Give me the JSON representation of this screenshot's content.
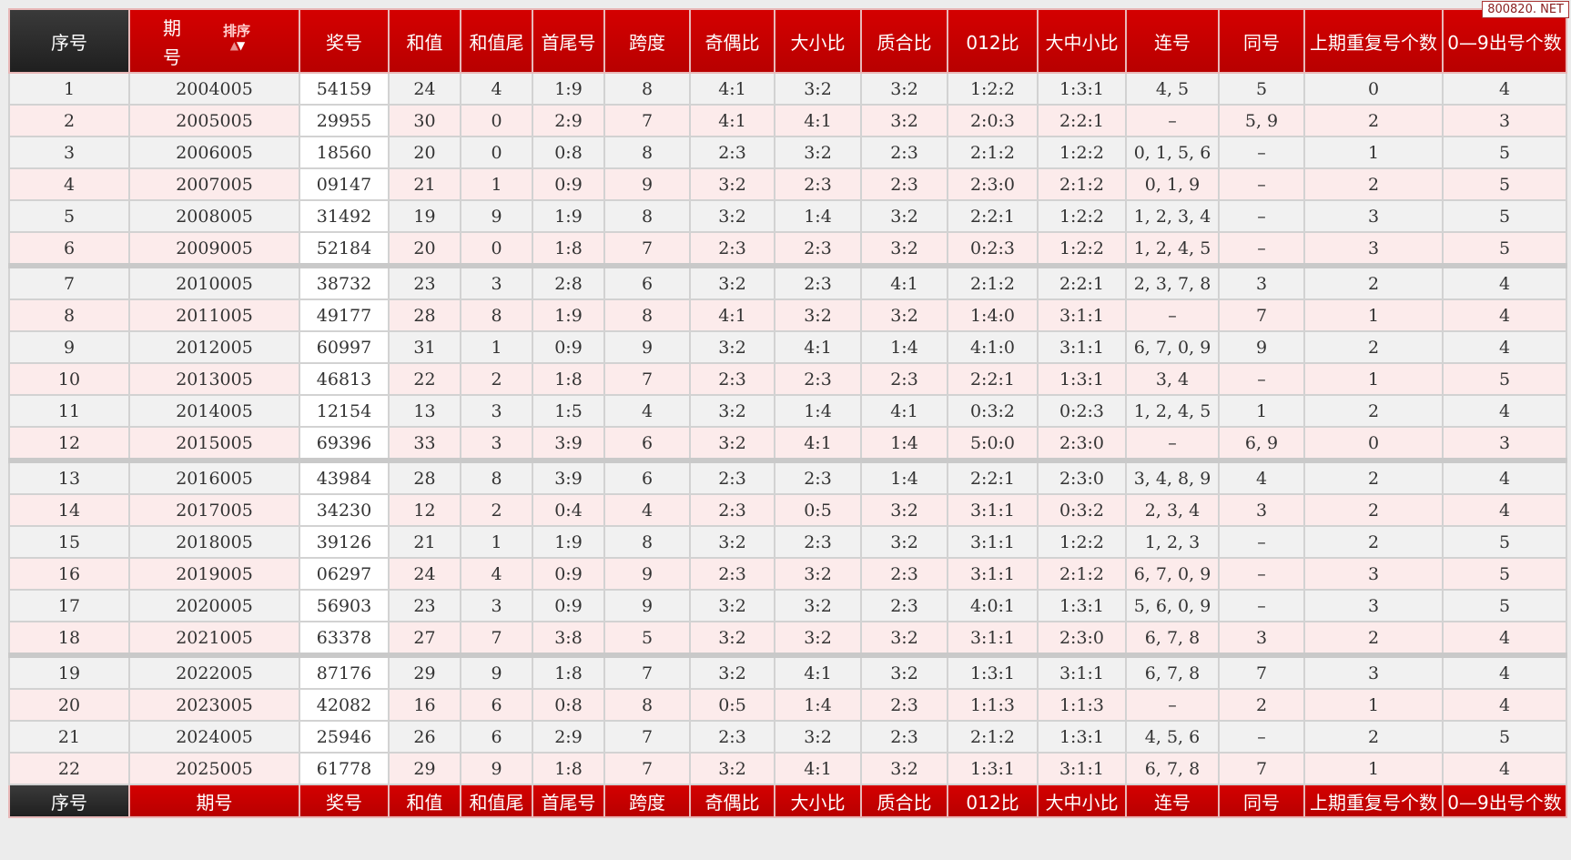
{
  "watermark": "800820. NET",
  "header": {
    "columns": [
      "序号",
      "期号",
      "奖号",
      "和值",
      "和值尾",
      "首尾号",
      "跨度",
      "奇偶比",
      "大小比",
      "质合比",
      "012比",
      "大中小比",
      "连号",
      "同号",
      "上期重复号个数",
      "0—9出号个数"
    ],
    "period_line1": "期",
    "period_line2": "号",
    "sort_label": "排序",
    "sort_icons": [
      "arrow-up-icon",
      "arrow-down-icon"
    ]
  },
  "footer": {
    "columns": [
      "序号",
      "期号",
      "奖号",
      "和值",
      "和值尾",
      "首尾号",
      "跨度",
      "奇偶比",
      "大小比",
      "质合比",
      "012比",
      "大中小比",
      "连号",
      "同号",
      "上期重复号个数",
      "0—9出号个数"
    ]
  },
  "colors": {
    "header_red": "#c80000",
    "header_dark": "#2b2b2b",
    "row_gray": "#f1f1f1",
    "row_pink": "#fcebeb"
  },
  "rows": [
    [
      "1",
      "2004005",
      "54159",
      "24",
      "4",
      "1:9",
      "8",
      "4:1",
      "3:2",
      "3:2",
      "1:2:2",
      "1:3:1",
      "4, 5",
      "5",
      "0",
      "4"
    ],
    [
      "2",
      "2005005",
      "29955",
      "30",
      "0",
      "2:9",
      "7",
      "4:1",
      "4:1",
      "3:2",
      "2:0:3",
      "2:2:1",
      "–",
      "5, 9",
      "2",
      "3"
    ],
    [
      "3",
      "2006005",
      "18560",
      "20",
      "0",
      "0:8",
      "8",
      "2:3",
      "3:2",
      "2:3",
      "2:1:2",
      "1:2:2",
      "0, 1, 5, 6",
      "–",
      "1",
      "5"
    ],
    [
      "4",
      "2007005",
      "09147",
      "21",
      "1",
      "0:9",
      "9",
      "3:2",
      "2:3",
      "2:3",
      "2:3:0",
      "2:1:2",
      "0, 1, 9",
      "–",
      "2",
      "5"
    ],
    [
      "5",
      "2008005",
      "31492",
      "19",
      "9",
      "1:9",
      "8",
      "3:2",
      "1:4",
      "3:2",
      "2:2:1",
      "1:2:2",
      "1, 2, 3, 4",
      "–",
      "3",
      "5"
    ],
    [
      "6",
      "2009005",
      "52184",
      "20",
      "0",
      "1:8",
      "7",
      "2:3",
      "2:3",
      "3:2",
      "0:2:3",
      "1:2:2",
      "1, 2, 4, 5",
      "–",
      "3",
      "5"
    ],
    [
      "7",
      "2010005",
      "38732",
      "23",
      "3",
      "2:8",
      "6",
      "3:2",
      "2:3",
      "4:1",
      "2:1:2",
      "2:2:1",
      "2, 3, 7, 8",
      "3",
      "2",
      "4"
    ],
    [
      "8",
      "2011005",
      "49177",
      "28",
      "8",
      "1:9",
      "8",
      "4:1",
      "3:2",
      "3:2",
      "1:4:0",
      "3:1:1",
      "–",
      "7",
      "1",
      "4"
    ],
    [
      "9",
      "2012005",
      "60997",
      "31",
      "1",
      "0:9",
      "9",
      "3:2",
      "4:1",
      "1:4",
      "4:1:0",
      "3:1:1",
      "6, 7, 0, 9",
      "9",
      "2",
      "4"
    ],
    [
      "10",
      "2013005",
      "46813",
      "22",
      "2",
      "1:8",
      "7",
      "2:3",
      "2:3",
      "2:3",
      "2:2:1",
      "1:3:1",
      "3, 4",
      "–",
      "1",
      "5"
    ],
    [
      "11",
      "2014005",
      "12154",
      "13",
      "3",
      "1:5",
      "4",
      "3:2",
      "1:4",
      "4:1",
      "0:3:2",
      "0:2:3",
      "1, 2, 4, 5",
      "1",
      "2",
      "4"
    ],
    [
      "12",
      "2015005",
      "69396",
      "33",
      "3",
      "3:9",
      "6",
      "3:2",
      "4:1",
      "1:4",
      "5:0:0",
      "2:3:0",
      "–",
      "6, 9",
      "0",
      "3"
    ],
    [
      "13",
      "2016005",
      "43984",
      "28",
      "8",
      "3:9",
      "6",
      "2:3",
      "2:3",
      "1:4",
      "2:2:1",
      "2:3:0",
      "3, 4, 8, 9",
      "4",
      "2",
      "4"
    ],
    [
      "14",
      "2017005",
      "34230",
      "12",
      "2",
      "0:4",
      "4",
      "2:3",
      "0:5",
      "3:2",
      "3:1:1",
      "0:3:2",
      "2, 3, 4",
      "3",
      "2",
      "4"
    ],
    [
      "15",
      "2018005",
      "39126",
      "21",
      "1",
      "1:9",
      "8",
      "3:2",
      "2:3",
      "3:2",
      "3:1:1",
      "1:2:2",
      "1, 2, 3",
      "–",
      "2",
      "5"
    ],
    [
      "16",
      "2019005",
      "06297",
      "24",
      "4",
      "0:9",
      "9",
      "2:3",
      "3:2",
      "2:3",
      "3:1:1",
      "2:1:2",
      "6, 7, 0, 9",
      "–",
      "3",
      "5"
    ],
    [
      "17",
      "2020005",
      "56903",
      "23",
      "3",
      "0:9",
      "9",
      "3:2",
      "3:2",
      "2:3",
      "4:0:1",
      "1:3:1",
      "5, 6, 0, 9",
      "–",
      "3",
      "5"
    ],
    [
      "18",
      "2021005",
      "63378",
      "27",
      "7",
      "3:8",
      "5",
      "3:2",
      "3:2",
      "3:2",
      "3:1:1",
      "2:3:0",
      "6, 7, 8",
      "3",
      "2",
      "4"
    ],
    [
      "19",
      "2022005",
      "87176",
      "29",
      "9",
      "1:8",
      "7",
      "3:2",
      "4:1",
      "3:2",
      "1:3:1",
      "3:1:1",
      "6, 7, 8",
      "7",
      "3",
      "4"
    ],
    [
      "20",
      "2023005",
      "42082",
      "16",
      "6",
      "0:8",
      "8",
      "0:5",
      "1:4",
      "2:3",
      "1:1:3",
      "1:1:3",
      "–",
      "2",
      "1",
      "4"
    ],
    [
      "21",
      "2024005",
      "25946",
      "26",
      "6",
      "2:9",
      "7",
      "2:3",
      "3:2",
      "2:3",
      "2:1:2",
      "1:3:1",
      "4, 5, 6",
      "–",
      "2",
      "5"
    ],
    [
      "22",
      "2025005",
      "61778",
      "29",
      "9",
      "1:8",
      "7",
      "3:2",
      "4:1",
      "3:2",
      "1:3:1",
      "3:1:1",
      "6, 7, 8",
      "7",
      "1",
      "4"
    ]
  ]
}
